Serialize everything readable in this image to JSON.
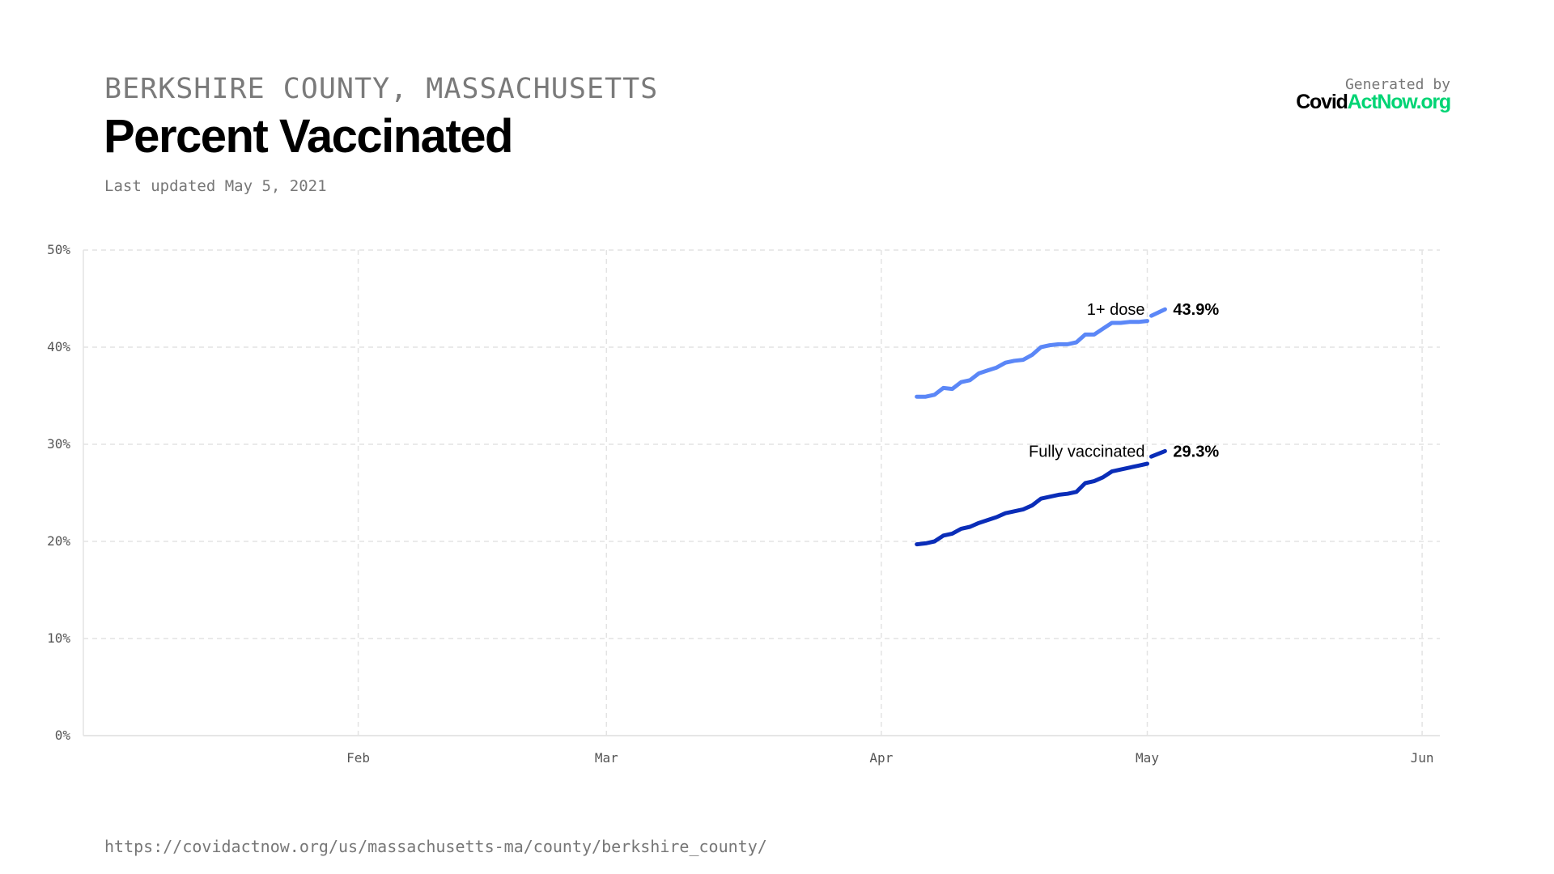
{
  "header": {
    "region": "BERKSHIRE COUNTY, MASSACHUSETTS",
    "title": "Percent Vaccinated",
    "last_updated": "Last updated May 5, 2021",
    "generated_by": "Generated by",
    "logo_part1": "Covid",
    "logo_part2": "ActNow.org"
  },
  "footer": {
    "url": "https://covidactnow.org/us/massachusetts-ma/county/berkshire_county/"
  },
  "colors": {
    "brand_green": "#00d474",
    "one_dose": "#5b87f7",
    "fully": "#0a2db8",
    "grid": "#e3e3e3"
  },
  "chart_data": {
    "type": "line",
    "title": "Percent Vaccinated",
    "xlim": [
      "2021-01-01",
      "2021-06-03"
    ],
    "ylim": [
      0,
      50
    ],
    "grid": true,
    "x_ticks": [
      {
        "date": "2021-02-01",
        "label": "Feb"
      },
      {
        "date": "2021-03-01",
        "label": "Mar"
      },
      {
        "date": "2021-04-01",
        "label": "Apr"
      },
      {
        "date": "2021-05-01",
        "label": "May"
      },
      {
        "date": "2021-06-01",
        "label": "Jun"
      }
    ],
    "y_ticks": [
      {
        "value": 0,
        "label": "0%"
      },
      {
        "value": 10,
        "label": "10%"
      },
      {
        "value": 20,
        "label": "20%"
      },
      {
        "value": 30,
        "label": "30%"
      },
      {
        "value": 40,
        "label": "40%"
      },
      {
        "value": 50,
        "label": "50%"
      }
    ],
    "start_date": "2021-04-05",
    "series": [
      {
        "name": "1+ dose",
        "end_label": "43.9%",
        "color": "#5b87f7",
        "values": [
          34.9,
          34.9,
          35.1,
          35.8,
          35.7,
          36.4,
          36.6,
          37.3,
          37.6,
          37.9,
          38.4,
          38.6,
          38.7,
          39.2,
          40.0,
          40.2,
          40.3,
          40.3,
          40.5,
          41.3,
          41.3,
          41.9,
          42.5,
          42.5,
          42.6,
          42.6,
          42.7
        ],
        "projection": [
          {
            "date": "2021-05-02",
            "value": 43.4
          },
          {
            "date": "2021-05-03",
            "value": 43.9
          }
        ]
      },
      {
        "name": "Fully vaccinated",
        "end_label": "29.3%",
        "color": "#0a2db8",
        "values": [
          19.7,
          19.8,
          20.0,
          20.6,
          20.8,
          21.3,
          21.5,
          21.9,
          22.2,
          22.5,
          22.9,
          23.1,
          23.3,
          23.7,
          24.4,
          24.6,
          24.8,
          24.9,
          25.1,
          26.0,
          26.2,
          26.6,
          27.2,
          27.4,
          27.6,
          27.8,
          28.0
        ],
        "projection": [
          {
            "date": "2021-05-02",
            "value": 28.9
          },
          {
            "date": "2021-05-03",
            "value": 29.3
          }
        ]
      }
    ]
  }
}
